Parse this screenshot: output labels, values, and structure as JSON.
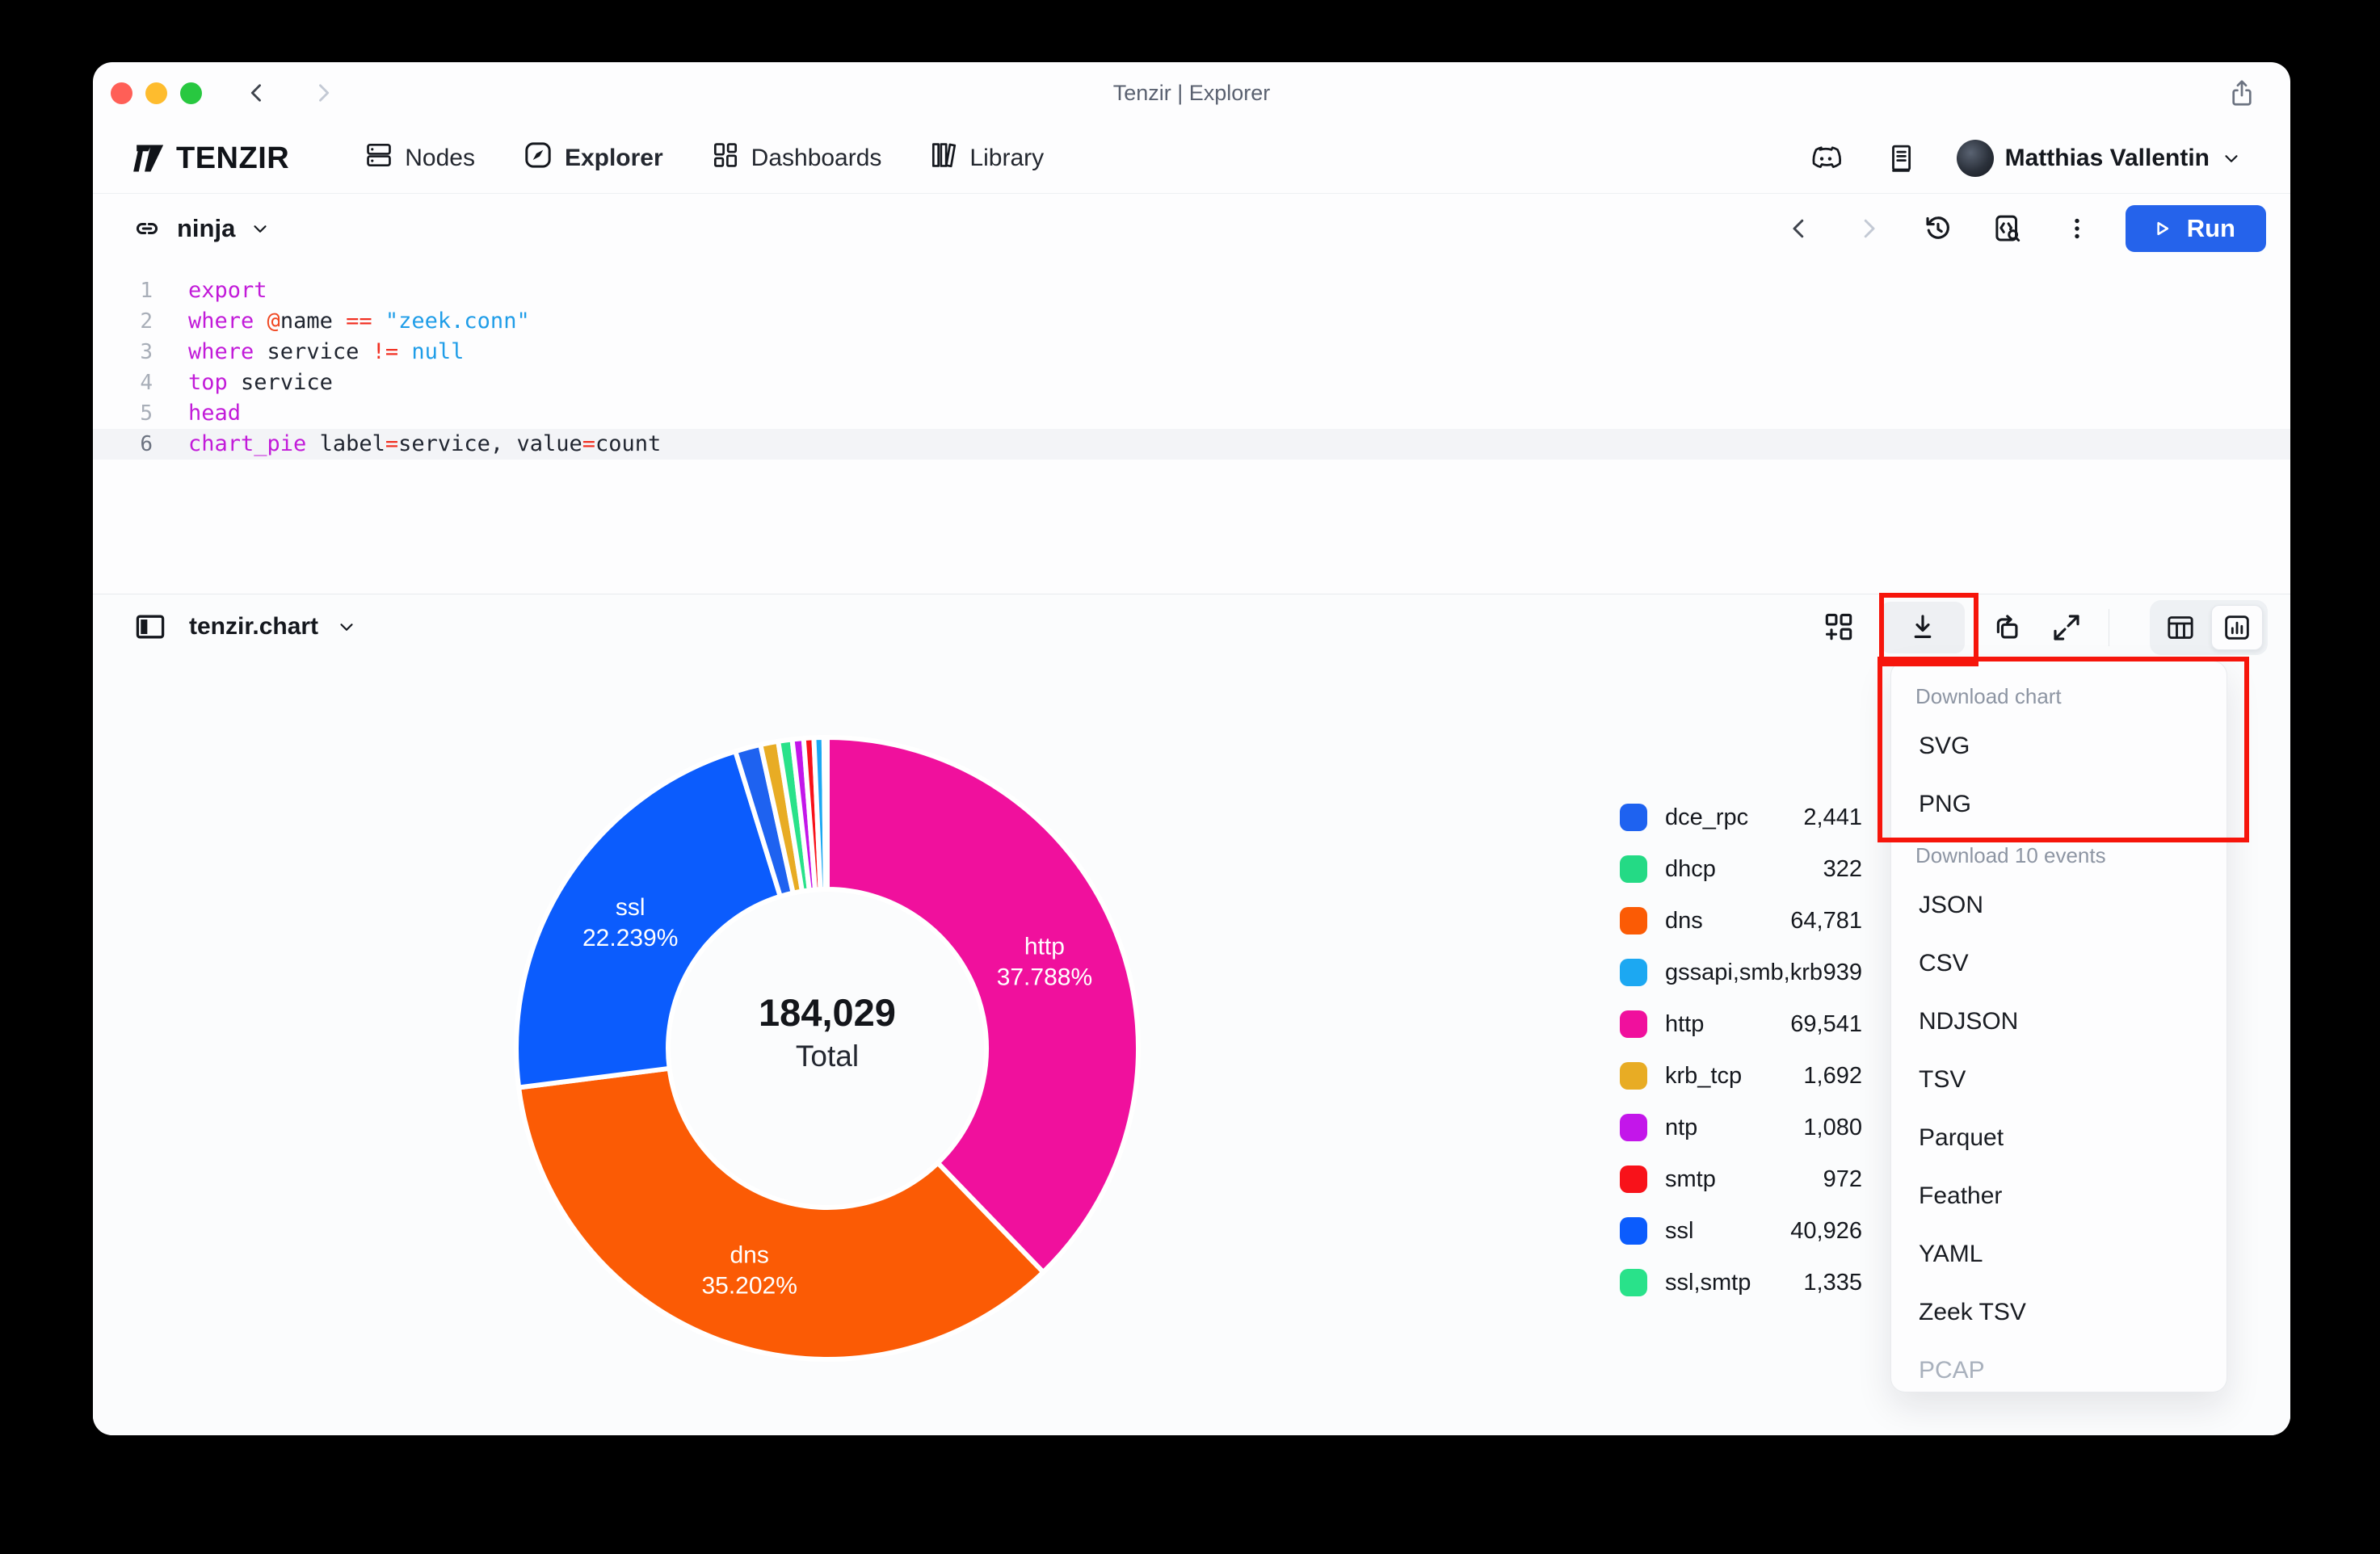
{
  "window": {
    "title": "Tenzir | Explorer"
  },
  "nav": {
    "brand": "TENZIR",
    "items": [
      {
        "label": "Nodes",
        "icon": "nodes-icon",
        "active": false
      },
      {
        "label": "Explorer",
        "icon": "explorer-icon",
        "active": true
      },
      {
        "label": "Dashboards",
        "icon": "dashboards-icon",
        "active": false
      },
      {
        "label": "Library",
        "icon": "library-icon",
        "active": false
      }
    ],
    "user_name": "Matthias Vallentin"
  },
  "toolbar": {
    "pipeline_name": "ninja",
    "run_label": "Run"
  },
  "editor": {
    "active_line": 6,
    "lines": [
      {
        "tokens": [
          {
            "t": "export",
            "c": "kw"
          }
        ]
      },
      {
        "tokens": [
          {
            "t": "where",
            "c": "kw"
          },
          {
            "t": " ",
            "c": "id"
          },
          {
            "t": "@",
            "c": "at"
          },
          {
            "t": "name",
            "c": "id"
          },
          {
            "t": " ",
            "c": "id"
          },
          {
            "t": "==",
            "c": "op"
          },
          {
            "t": " ",
            "c": "id"
          },
          {
            "t": "\"zeek.conn\"",
            "c": "str"
          }
        ]
      },
      {
        "tokens": [
          {
            "t": "where",
            "c": "kw"
          },
          {
            "t": " ",
            "c": "id"
          },
          {
            "t": "service",
            "c": "id"
          },
          {
            "t": " ",
            "c": "id"
          },
          {
            "t": "!=",
            "c": "op"
          },
          {
            "t": " ",
            "c": "id"
          },
          {
            "t": "null",
            "c": "str"
          }
        ]
      },
      {
        "tokens": [
          {
            "t": "top",
            "c": "kw"
          },
          {
            "t": " ",
            "c": "id"
          },
          {
            "t": "service",
            "c": "id"
          }
        ]
      },
      {
        "tokens": [
          {
            "t": "head",
            "c": "kw"
          }
        ]
      },
      {
        "tokens": [
          {
            "t": "chart_pie",
            "c": "kw"
          },
          {
            "t": " ",
            "c": "id"
          },
          {
            "t": "label",
            "c": "id"
          },
          {
            "t": "=",
            "c": "op"
          },
          {
            "t": "service",
            "c": "id"
          },
          {
            "t": ",",
            "c": "id"
          },
          {
            "t": " ",
            "c": "id"
          },
          {
            "t": "value",
            "c": "id"
          },
          {
            "t": "=",
            "c": "op"
          },
          {
            "t": "count",
            "c": "id"
          }
        ]
      }
    ]
  },
  "results": {
    "title": "tenzir.chart"
  },
  "download_menu": {
    "sections": [
      {
        "label": "Download chart",
        "items": [
          {
            "label": "SVG",
            "disabled": false
          },
          {
            "label": "PNG",
            "disabled": false
          }
        ]
      },
      {
        "label": "Download 10 events",
        "items": [
          {
            "label": "JSON",
            "disabled": false
          },
          {
            "label": "CSV",
            "disabled": false
          },
          {
            "label": "NDJSON",
            "disabled": false
          },
          {
            "label": "TSV",
            "disabled": false
          },
          {
            "label": "Parquet",
            "disabled": false
          },
          {
            "label": "Feather",
            "disabled": false
          },
          {
            "label": "YAML",
            "disabled": false
          },
          {
            "label": "Zeek TSV",
            "disabled": false
          },
          {
            "label": "PCAP",
            "disabled": true
          }
        ]
      }
    ]
  },
  "chart_data": {
    "type": "pie",
    "subtype": "donut",
    "title": "tenzir.chart",
    "categories": [
      "dce_rpc",
      "dhcp",
      "dns",
      "gssapi,smb,krb",
      "http",
      "krb_tcp",
      "ntp",
      "smtp",
      "ssl",
      "ssl,smtp"
    ],
    "values": [
      2441,
      322,
      64781,
      939,
      69541,
      1692,
      1080,
      972,
      40926,
      1335
    ],
    "total": 184029,
    "center_total_text": "184,029",
    "center_label": "Total",
    "slice_labels": {
      "http": "37.788%",
      "dns": "35.202%",
      "ssl": "22.239%"
    },
    "slice_order": "value-desc",
    "start_angle_deg": -90,
    "legend_position": "right",
    "colors": {
      "dce_rpc": "#1e62f0",
      "dhcp": "#24da85",
      "dns": "#fb5b05",
      "gssapi,smb,krb": "#1ca8f2",
      "http": "#f0109d",
      "krb_tcp": "#e8ac24",
      "ntp": "#c316ea",
      "smtp": "#f8121a",
      "ssl": "#0b5cfd",
      "ssl,smtp": "#29e28a"
    }
  },
  "annotations": {
    "highlight_color": "#f6150b",
    "highlighted": [
      "download-chart-button",
      "download-chart-menu-section"
    ]
  }
}
